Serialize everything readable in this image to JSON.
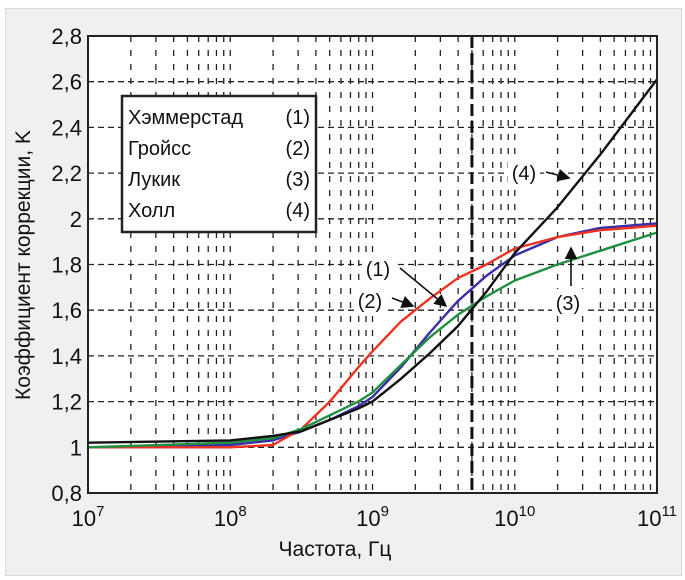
{
  "chart_data": {
    "type": "line",
    "title": "",
    "xlabel": "Частота, Гц",
    "ylabel": "Коэффициент коррекции, K",
    "xscale": "log",
    "xlim": [
      10000000.0,
      100000000000.0
    ],
    "ylim": [
      0.8,
      2.8
    ],
    "grid": true,
    "x_ticks": [
      {
        "base": "10",
        "exp": "7"
      },
      {
        "base": "10",
        "exp": "8"
      },
      {
        "base": "10",
        "exp": "9"
      },
      {
        "base": "10",
        "exp": "10"
      },
      {
        "base": "10",
        "exp": "11"
      }
    ],
    "y_ticks": [
      "0,8",
      "1",
      "1,2",
      "1,4",
      "1,6",
      "1,8",
      "2",
      "2,2",
      "2,4",
      "2,6",
      "2,8"
    ],
    "y_tick_values": [
      0.8,
      1,
      1.2,
      1.4,
      1.6,
      1.8,
      2,
      2.2,
      2.4,
      2.6,
      2.8
    ],
    "vertical_marker_hz": 5000000000.0,
    "legend_position": "upper-left",
    "log10_x": [
      7,
      8,
      8.3,
      8.5,
      8.7,
      8.9,
      9.0,
      9.2,
      9.4,
      9.6,
      9.8,
      10.0,
      10.3,
      10.6,
      11.0
    ],
    "series": [
      {
        "name": "Хэммерстад",
        "id": "(1)",
        "color": "#3a2ea8",
        "values": [
          1.0,
          1.01,
          1.03,
          1.07,
          1.12,
          1.18,
          1.22,
          1.35,
          1.5,
          1.64,
          1.75,
          1.84,
          1.92,
          1.96,
          1.98
        ]
      },
      {
        "name": "Гройсс",
        "id": "(2)",
        "color": "#ee3322",
        "values": [
          1.0,
          1.0,
          1.01,
          1.08,
          1.2,
          1.35,
          1.42,
          1.55,
          1.65,
          1.74,
          1.8,
          1.87,
          1.92,
          1.95,
          1.97
        ]
      },
      {
        "name": "Лукик",
        "id": "(3)",
        "color": "#1e9040",
        "values": [
          1.0,
          1.02,
          1.04,
          1.08,
          1.14,
          1.2,
          1.24,
          1.36,
          1.48,
          1.58,
          1.66,
          1.73,
          1.8,
          1.86,
          1.94
        ]
      },
      {
        "name": "Холл",
        "id": "(4)",
        "color": "#111111",
        "values": [
          1.02,
          1.03,
          1.05,
          1.07,
          1.12,
          1.17,
          1.2,
          1.3,
          1.41,
          1.53,
          1.68,
          1.85,
          2.05,
          2.28,
          2.61
        ]
      }
    ],
    "annotations": [
      "(1)",
      "(2)",
      "(3)",
      "(4)"
    ]
  }
}
